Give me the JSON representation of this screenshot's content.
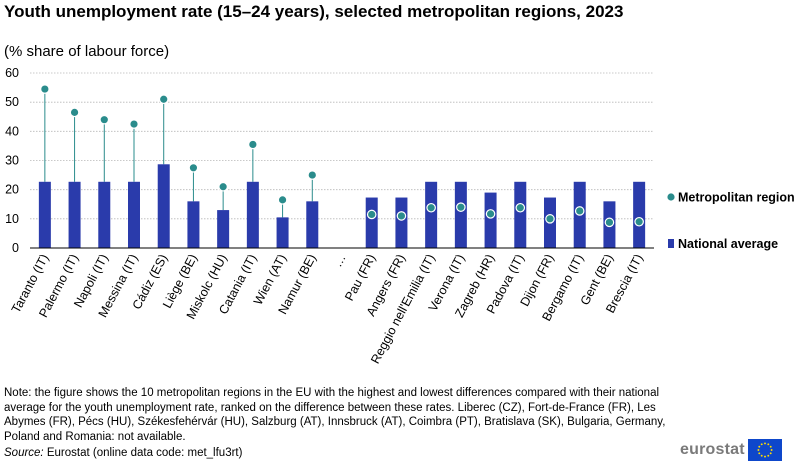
{
  "title": "Youth unemployment rate (15–24 years), selected metropolitan regions, 2023",
  "subtitle": "(% share of labour force)",
  "chart_data": {
    "type": "bar",
    "categories": [
      "Taranto (IT)",
      "Palermo (IT)",
      "Napoli (IT)",
      "Messina (IT)",
      "Cádiz (ES)",
      "Liège (BE)",
      "Miskolc (HU)",
      "Catania (IT)",
      "Wien (AT)",
      "Namur (BE)",
      "…",
      "Pau (FR)",
      "Angers (FR)",
      "Reggio nell'Emilia (IT)",
      "Verona (IT)",
      "Zagreb (HR)",
      "Padova (IT)",
      "Dijon (FR)",
      "Bergamo (IT)",
      "Gent (BE)",
      "Brescia (IT)"
    ],
    "series": [
      {
        "name": "National average",
        "type": "bar",
        "color": "#2a3bab",
        "values": [
          22.7,
          22.7,
          22.7,
          22.7,
          28.7,
          16.0,
          13.0,
          22.7,
          10.5,
          16.0,
          null,
          17.3,
          17.3,
          22.7,
          22.7,
          19.0,
          22.7,
          17.3,
          22.7,
          16.0,
          22.7
        ]
      },
      {
        "name": "Metropolitan region",
        "type": "dot",
        "color": "#2a8c8c",
        "values": [
          54.5,
          46.5,
          44.0,
          42.5,
          51.0,
          27.5,
          21.0,
          35.5,
          16.5,
          25.0,
          null,
          11.5,
          11.0,
          13.8,
          14.0,
          11.7,
          13.8,
          10.0,
          12.7,
          8.8,
          9.0
        ]
      }
    ],
    "xlabel": "",
    "ylabel": "",
    "ylim": [
      0,
      60
    ],
    "yticks": [
      "0",
      "10",
      "20",
      "30",
      "40",
      "50",
      "60"
    ],
    "legend": [
      "Metropolitan region",
      "National average"
    ],
    "legend_position": "right"
  },
  "note": "Note: the figure shows the 10 metropolitan regions in the EU with the highest and lowest differences compared with their national average for the youth  unemployment  rate, ranked on the difference between these rates. Liberec (CZ), Fort-de-France (FR), Les Abymes (FR), Pécs (HU), Székesfehérvár (HU), Salzburg (AT), Innsbruck  (AT), Coimbra (PT), Bratislava (SK), Bulgaria, Germany, Poland and Romania: not available.",
  "source": {
    "label": "Source:",
    "text": "Eurostat (online data code: met_lfu3rt)"
  },
  "logo": {
    "text": "eurostat",
    "flag_color": "#0e47cb",
    "star_color": "#ffdd00"
  }
}
